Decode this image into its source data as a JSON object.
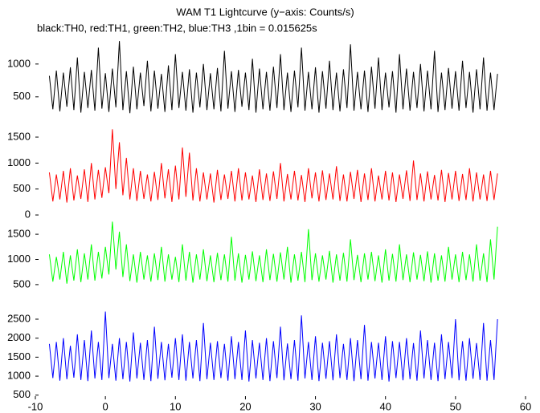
{
  "chart_data": [
    {
      "type": "line",
      "title": "WAM T1 Lightcurve (y−axis: Counts/s)",
      "subtitle": "black:TH0, red:TH1, green:TH2, blue:TH3 ,1bin = 0.015625s",
      "color": "#000000",
      "xlim": [
        -10,
        60
      ],
      "ylim": [
        70,
        1340
      ],
      "yticks": [
        500,
        1000
      ],
      "x": [
        -8,
        -7.5,
        -7,
        -6.5,
        -6,
        -5.5,
        -5,
        -4.5,
        -4,
        -3.5,
        -3,
        -2.5,
        -2,
        -1.5,
        -1,
        -0.5,
        0,
        0.5,
        1,
        1.5,
        2,
        2.5,
        3,
        3.5,
        4,
        4.5,
        5,
        5.5,
        6,
        6.5,
        7,
        7.5,
        8,
        8.5,
        9,
        9.5,
        10,
        10.5,
        11,
        11.5,
        12,
        12.5,
        13,
        13.5,
        14,
        14.5,
        15,
        15.5,
        16,
        16.5,
        17,
        17.5,
        18,
        18.5,
        19,
        19.5,
        20,
        20.5,
        21,
        21.5,
        22,
        22.5,
        23,
        23.5,
        24,
        24.5,
        25,
        25.5,
        26,
        26.5,
        27,
        27.5,
        28,
        28.5,
        29,
        29.5,
        30,
        30.5,
        31,
        31.5,
        32,
        32.5,
        33,
        33.5,
        34,
        34.5,
        35,
        35.5,
        36,
        36.5,
        37,
        37.5,
        38,
        38.5,
        39,
        39.5,
        40,
        40.5,
        41,
        41.5,
        42,
        42.5,
        43,
        43.5,
        44,
        44.5,
        45,
        45.5,
        46,
        46.5,
        47,
        47.5,
        48,
        48.5,
        49,
        49.5,
        50,
        50.5,
        51,
        51.5,
        52,
        52.5,
        53,
        53.5,
        54,
        54.5,
        55,
        55.5,
        56
      ],
      "values": [
        820,
        310,
        900,
        280,
        870,
        350,
        950,
        300,
        1100,
        260,
        880,
        330,
        910,
        290,
        1250,
        320,
        860,
        270,
        930,
        340,
        1350,
        300,
        890,
        250,
        960,
        310,
        870,
        360,
        1050,
        280,
        900,
        320,
        850,
        270,
        980,
        300,
        1150,
        330,
        880,
        290,
        920,
        260,
        870,
        340,
        1000,
        300,
        860,
        310,
        940,
        280,
        1200,
        320,
        890,
        270,
        910,
        350,
        870,
        300,
        1080,
        260,
        930,
        310,
        880,
        290,
        960,
        330,
        1150,
        300,
        870,
        270,
        900,
        340,
        1250,
        290,
        880,
        310,
        950,
        260,
        890,
        320,
        1050,
        300,
        870,
        280,
        920,
        330,
        1300,
        290,
        880,
        310,
        900,
        270,
        960,
        320,
        1100,
        300,
        870,
        340,
        890,
        260,
        1150,
        310,
        930,
        290,
        880,
        330,
        1000,
        280,
        900,
        310,
        1200,
        270,
        870,
        300,
        940,
        320,
        890,
        290,
        1050,
        330,
        880,
        260,
        920,
        310,
        1100,
        290,
        870,
        300,
        850
      ]
    },
    {
      "type": "line",
      "color": "#ff0000",
      "xlim": [
        -10,
        60
      ],
      "ylim": [
        -30,
        1670
      ],
      "yticks": [
        0,
        500,
        1000,
        1500
      ],
      "x": [
        -8,
        -7.5,
        -7,
        -6.5,
        -6,
        -5.5,
        -5,
        -4.5,
        -4,
        -3.5,
        -3,
        -2.5,
        -2,
        -1.5,
        -1,
        -0.5,
        0,
        0.5,
        1,
        1.5,
        2,
        2.5,
        3,
        3.5,
        4,
        4.5,
        5,
        5.5,
        6,
        6.5,
        7,
        7.5,
        8,
        8.5,
        9,
        9.5,
        10,
        10.5,
        11,
        11.5,
        12,
        12.5,
        13,
        13.5,
        14,
        14.5,
        15,
        15.5,
        16,
        16.5,
        17,
        17.5,
        18,
        18.5,
        19,
        19.5,
        20,
        20.5,
        21,
        21.5,
        22,
        22.5,
        23,
        23.5,
        24,
        24.5,
        25,
        25.5,
        26,
        26.5,
        27,
        27.5,
        28,
        28.5,
        29,
        29.5,
        30,
        30.5,
        31,
        31.5,
        32,
        32.5,
        33,
        33.5,
        34,
        34.5,
        35,
        35.5,
        36,
        36.5,
        37,
        37.5,
        38,
        38.5,
        39,
        39.5,
        40,
        40.5,
        41,
        41.5,
        42,
        42.5,
        43,
        43.5,
        44,
        44.5,
        45,
        45.5,
        46,
        46.5,
        47,
        47.5,
        48,
        48.5,
        49,
        49.5,
        50,
        50.5,
        51,
        51.5,
        52,
        52.5,
        53,
        53.5,
        54,
        54.5,
        55,
        55.5,
        56
      ],
      "values": [
        820,
        260,
        780,
        300,
        850,
        240,
        900,
        280,
        760,
        310,
        880,
        250,
        1000,
        300,
        870,
        330,
        920,
        420,
        1650,
        500,
        1400,
        380,
        1100,
        300,
        900,
        270,
        850,
        310,
        780,
        260,
        830,
        290,
        1000,
        320,
        880,
        250,
        950,
        300,
        1300,
        350,
        1200,
        280,
        900,
        260,
        820,
        300,
        800,
        240,
        870,
        290,
        780,
        310,
        850,
        260,
        900,
        280,
        820,
        300,
        760,
        250,
        880,
        290,
        800,
        270,
        840,
        310,
        1000,
        260,
        790,
        300,
        850,
        280,
        770,
        250,
        900,
        320,
        820,
        260,
        860,
        290,
        800,
        300,
        940,
        270,
        780,
        260,
        830,
        310,
        870,
        250,
        800,
        290,
        900,
        260,
        760,
        300,
        850,
        280,
        820,
        250,
        780,
        310,
        860,
        270,
        1050,
        290,
        800,
        260,
        840,
        300,
        770,
        280,
        870,
        250,
        810,
        300,
        850,
        270,
        790,
        290,
        900,
        260,
        820,
        300,
        780,
        270,
        850,
        290,
        800
      ]
    },
    {
      "type": "line",
      "color": "#00ff00",
      "xlim": [
        -10,
        60
      ],
      "ylim": [
        180,
        1820
      ],
      "yticks": [
        500,
        1000,
        1500
      ],
      "x": [
        -8,
        -7.5,
        -7,
        -6.5,
        -6,
        -5.5,
        -5,
        -4.5,
        -4,
        -3.5,
        -3,
        -2.5,
        -2,
        -1.5,
        -1,
        -0.5,
        0,
        0.5,
        1,
        1.5,
        2,
        2.5,
        3,
        3.5,
        4,
        4.5,
        5,
        5.5,
        6,
        6.5,
        7,
        7.5,
        8,
        8.5,
        9,
        9.5,
        10,
        10.5,
        11,
        11.5,
        12,
        12.5,
        13,
        13.5,
        14,
        14.5,
        15,
        15.5,
        16,
        16.5,
        17,
        17.5,
        18,
        18.5,
        19,
        19.5,
        20,
        20.5,
        21,
        21.5,
        22,
        22.5,
        23,
        23.5,
        24,
        24.5,
        25,
        25.5,
        26,
        26.5,
        27,
        27.5,
        28,
        28.5,
        29,
        29.5,
        30,
        30.5,
        31,
        31.5,
        32,
        32.5,
        33,
        33.5,
        34,
        34.5,
        35,
        35.5,
        36,
        36.5,
        37,
        37.5,
        38,
        38.5,
        39,
        39.5,
        40,
        40.5,
        41,
        41.5,
        42,
        42.5,
        43,
        43.5,
        44,
        44.5,
        45,
        45.5,
        46,
        46.5,
        47,
        47.5,
        48,
        48.5,
        49,
        49.5,
        50,
        50.5,
        51,
        51.5,
        52,
        52.5,
        53,
        53.5,
        54,
        54.5,
        55,
        55.5,
        56
      ],
      "values": [
        1100,
        560,
        1050,
        600,
        1150,
        520,
        1080,
        580,
        1200,
        550,
        1120,
        600,
        1300,
        580,
        1150,
        620,
        1250,
        700,
        1750,
        800,
        1550,
        650,
        1300,
        570,
        1100,
        540,
        1150,
        600,
        1080,
        560,
        1120,
        590,
        1250,
        560,
        1100,
        600,
        1050,
        550,
        1300,
        580,
        1150,
        540,
        1100,
        600,
        1200,
        570,
        1080,
        550,
        1130,
        590,
        1100,
        560,
        1450,
        580,
        1120,
        540,
        1090,
        600,
        1160,
        570,
        1080,
        550,
        1200,
        590,
        1110,
        560,
        1140,
        600,
        1250,
        540,
        1100,
        580,
        1150,
        550,
        1600,
        590,
        1120,
        560,
        1080,
        600,
        1170,
        540,
        1100,
        580,
        1130,
        560,
        1400,
        590,
        1090,
        550,
        1120,
        600,
        1150,
        570,
        1080,
        540,
        1200,
        580,
        1110,
        560,
        1300,
        590,
        1100,
        550,
        1140,
        600,
        1090,
        570,
        1160,
        540,
        1120,
        580,
        1080,
        560,
        1250,
        600,
        1100,
        550,
        1150,
        590,
        1100,
        560,
        1300,
        580,
        1120,
        550,
        1400,
        600,
        1650
      ]
    },
    {
      "type": "line",
      "color": "#0000ff",
      "xlim": [
        -10,
        60
      ],
      "ylim": [
        410,
        2880
      ],
      "yticks": [
        500,
        1000,
        1500,
        2000,
        2500
      ],
      "xticks": [
        -10,
        0,
        10,
        20,
        30,
        40,
        50,
        60
      ],
      "x": [
        -8,
        -7.5,
        -7,
        -6.5,
        -6,
        -5.5,
        -5,
        -4.5,
        -4,
        -3.5,
        -3,
        -2.5,
        -2,
        -1.5,
        -1,
        -0.5,
        0,
        0.5,
        1,
        1.5,
        2,
        2.5,
        3,
        3.5,
        4,
        4.5,
        5,
        5.5,
        6,
        6.5,
        7,
        7.5,
        8,
        8.5,
        9,
        9.5,
        10,
        10.5,
        11,
        11.5,
        12,
        12.5,
        13,
        13.5,
        14,
        14.5,
        15,
        15.5,
        16,
        16.5,
        17,
        17.5,
        18,
        18.5,
        19,
        19.5,
        20,
        20.5,
        21,
        21.5,
        22,
        22.5,
        23,
        23.5,
        24,
        24.5,
        25,
        25.5,
        26,
        26.5,
        27,
        27.5,
        28,
        28.5,
        29,
        29.5,
        30,
        30.5,
        31,
        31.5,
        32,
        32.5,
        33,
        33.5,
        34,
        34.5,
        35,
        35.5,
        36,
        36.5,
        37,
        37.5,
        38,
        38.5,
        39,
        39.5,
        40,
        40.5,
        41,
        41.5,
        42,
        42.5,
        43,
        43.5,
        44,
        44.5,
        45,
        45.5,
        46,
        46.5,
        47,
        47.5,
        48,
        48.5,
        49,
        49.5,
        50,
        50.5,
        51,
        51.5,
        52,
        52.5,
        53,
        53.5,
        54,
        54.5,
        55,
        55.5,
        56
      ],
      "values": [
        1850,
        950,
        1900,
        880,
        2000,
        920,
        1800,
        960,
        2100,
        900,
        1950,
        870,
        2200,
        940,
        1900,
        900,
        2700,
        950,
        1850,
        880,
        2000,
        920,
        1900,
        860,
        2150,
        940,
        1880,
        900,
        1950,
        870,
        2300,
        930,
        1900,
        890,
        1850,
        960,
        2000,
        900,
        2100,
        880,
        1900,
        940,
        1950,
        870,
        2400,
        920,
        1880,
        900,
        1920,
        950,
        1850,
        880,
        2050,
        920,
        1900,
        900,
        2200,
        860,
        1950,
        940,
        1880,
        900,
        2000,
        870,
        1920,
        950,
        2300,
        890,
        1860,
        920,
        1950,
        880,
        2600,
        940,
        1900,
        900,
        2050,
        870,
        1880,
        930,
        1920,
        890,
        2100,
        950,
        1850,
        900,
        2000,
        870,
        1950,
        920,
        2350,
        880,
        1900,
        940,
        1880,
        900,
        2050,
        860,
        1920,
        950,
        1900,
        890,
        2000,
        920,
        1870,
        880,
        2200,
        940,
        1950,
        900,
        1880,
        870,
        2100,
        920,
        1900,
        950,
        2500,
        890,
        1920,
        880,
        2000,
        930,
        1870,
        900,
        2400,
        880,
        1950,
        900,
        2500
      ]
    }
  ]
}
